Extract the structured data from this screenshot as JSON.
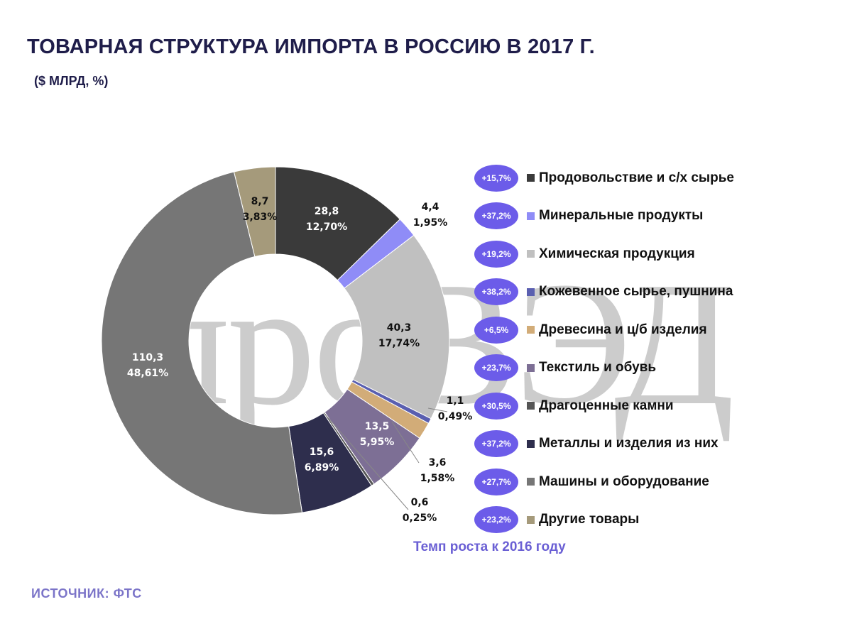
{
  "title": "ТОВАРНАЯ СТРУКТУРА ИМПОРТА В РОССИЮ В 2017 Г.",
  "subtitle": "($ МЛРД, %)",
  "watermark": "проВЭД",
  "growth_caption": "Темп роста к 2016 году",
  "source": "ИСТОЧНИК: ФТС",
  "chart_data": {
    "type": "donut",
    "title": "ТОВАРНАЯ СТРУКТУРА ИМПОРТА В РОССИЮ В 2017 Г.",
    "unit": "$ млрд, %",
    "legend_position": "right",
    "segments": [
      {
        "name": "Продовольствие и с/х сырье",
        "value": 28.8,
        "value_label": "28,8",
        "percent": 12.7,
        "percent_label": "12,70%",
        "growth": "+15,7%",
        "color": "#3a3a3a"
      },
      {
        "name": "Минеральные продукты",
        "value": 4.4,
        "value_label": "4,4",
        "percent": 1.95,
        "percent_label": "1,95%",
        "growth": "+37,2%",
        "color": "#8f8cf7"
      },
      {
        "name": "Химическая продукция",
        "value": 40.3,
        "value_label": "40,3",
        "percent": 17.74,
        "percent_label": "17,74%",
        "growth": "+19,2%",
        "color": "#c0c0c0"
      },
      {
        "name": "Кожевенное сырье, пушнина",
        "value": 1.1,
        "value_label": "1,1",
        "percent": 0.49,
        "percent_label": "0,49%",
        "growth": "+38,2%",
        "color": "#5a5fb0"
      },
      {
        "name": "Древесина и ц/б изделия",
        "value": 3.6,
        "value_label": "3,6",
        "percent": 1.58,
        "percent_label": "1,58%",
        "growth": "+6,5%",
        "color": "#d2ac78"
      },
      {
        "name": "Текстиль и обувь",
        "value": 13.5,
        "value_label": "13,5",
        "percent": 5.95,
        "percent_label": "5,95%",
        "growth": "+23,7%",
        "color": "#7d6f95"
      },
      {
        "name": "Драгоценные камни",
        "value": 0.6,
        "value_label": "0,6",
        "percent": 0.25,
        "percent_label": "0,25%",
        "growth": "+30,5%",
        "color": "#555555"
      },
      {
        "name": "Металлы и изделия из них",
        "value": 15.6,
        "value_label": "15,6",
        "percent": 6.89,
        "percent_label": "6,89%",
        "growth": "+37,2%",
        "color": "#2e2e4d"
      },
      {
        "name": "Машины и оборудование",
        "value": 110.3,
        "value_label": "110,3",
        "percent": 48.61,
        "percent_label": "48,61%",
        "growth": "+27,7%",
        "color": "#767676"
      },
      {
        "name": "Другие товары",
        "value": 8.7,
        "value_label": "8,7",
        "percent": 3.83,
        "percent_label": "3,83%",
        "growth": "+23,2%",
        "color": "#a59a7b"
      }
    ]
  }
}
